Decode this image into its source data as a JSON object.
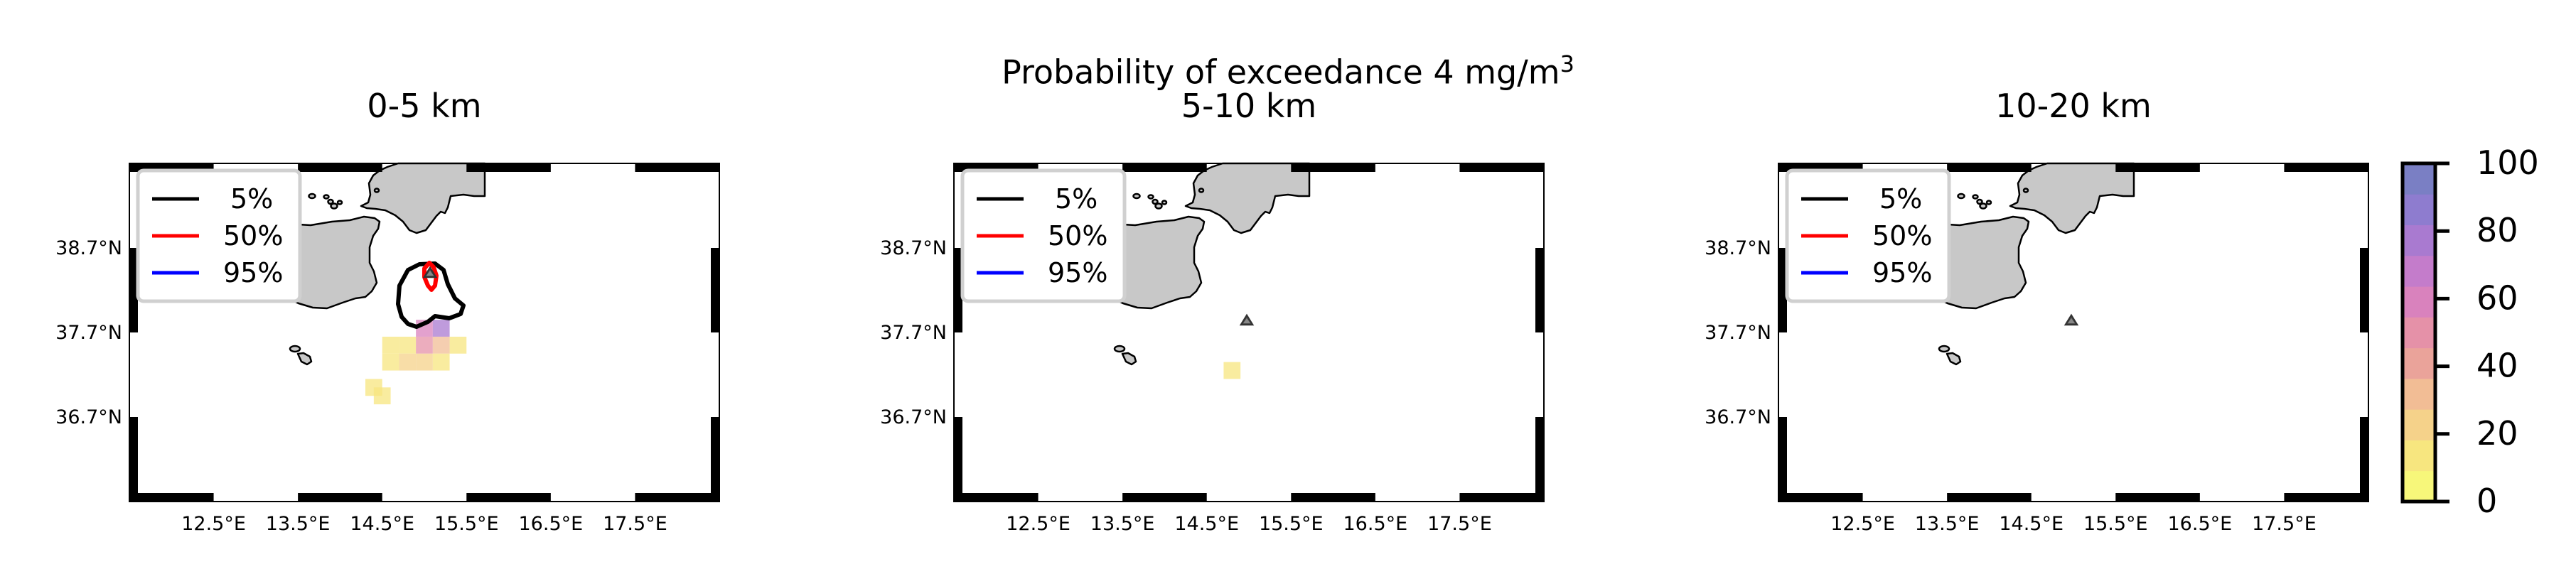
{
  "figure": {
    "title_main": "Probability of exceedance 4 mg/m",
    "title_sup": "3"
  },
  "panels": [
    {
      "subtitle": "0-5 km"
    },
    {
      "subtitle": "5-10 km"
    },
    {
      "subtitle": "10-20 km"
    }
  ],
  "axes": {
    "lon_ticks": [
      "12.5°E",
      "13.5°E",
      "14.5°E",
      "15.5°E",
      "16.5°E",
      "17.5°E"
    ],
    "lat_ticks": [
      "38.7°N",
      "37.7°N",
      "36.7°N"
    ],
    "lon_values": [
      12.5,
      13.5,
      14.5,
      15.5,
      16.5,
      17.5
    ],
    "lat_values": [
      38.7,
      37.7,
      36.7
    ],
    "xlim": [
      11.5,
      18.5
    ],
    "ylim": [
      35.7,
      39.7
    ]
  },
  "legend": [
    {
      "label": "5%",
      "color": "#000000"
    },
    {
      "label": "50%",
      "color": "#ff0000"
    },
    {
      "label": "95%",
      "color": "#0000ff"
    }
  ],
  "colorbar": {
    "ticks": [
      "100",
      "80",
      "60",
      "40",
      "20",
      "0"
    ],
    "range": [
      0,
      100
    ],
    "colors": [
      "#f7f77a",
      "#f7e67f",
      "#f5d28a",
      "#f2bd95",
      "#eaa39a",
      "#e591a8",
      "#d982bd",
      "#c47ccb",
      "#a97ad0",
      "#8e7ccf",
      "#7a7fc4"
    ]
  },
  "map": {
    "land_color": "#c8c8c8",
    "vent_marker": "triangle",
    "vent_lon": 14.99,
    "vent_lat": 37.75
  },
  "chart_data": [
    {
      "type": "heatmap",
      "title": "0-5 km",
      "cells": [
        {
          "lon": 14.6,
          "lat": 37.55,
          "value": 15
        },
        {
          "lon": 14.8,
          "lat": 37.55,
          "value": 15
        },
        {
          "lon": 14.6,
          "lat": 37.35,
          "value": 15
        },
        {
          "lon": 14.8,
          "lat": 37.35,
          "value": 20
        },
        {
          "lon": 15.0,
          "lat": 37.75,
          "value": 60
        },
        {
          "lon": 15.2,
          "lat": 37.75,
          "value": 75
        },
        {
          "lon": 15.0,
          "lat": 37.55,
          "value": 50
        },
        {
          "lon": 15.2,
          "lat": 37.55,
          "value": 30
        },
        {
          "lon": 15.4,
          "lat": 37.55,
          "value": 10
        },
        {
          "lon": 15.0,
          "lat": 37.35,
          "value": 20
        },
        {
          "lon": 15.2,
          "lat": 37.35,
          "value": 10
        },
        {
          "lon": 14.4,
          "lat": 37.05,
          "value": 10
        },
        {
          "lon": 14.5,
          "lat": 36.95,
          "value": 10
        }
      ]
    },
    {
      "type": "heatmap",
      "title": "5-10 km",
      "cells": [
        {
          "lon": 14.8,
          "lat": 37.25,
          "value": 15
        }
      ]
    },
    {
      "type": "heatmap",
      "title": "10-20 km",
      "cells": []
    }
  ]
}
